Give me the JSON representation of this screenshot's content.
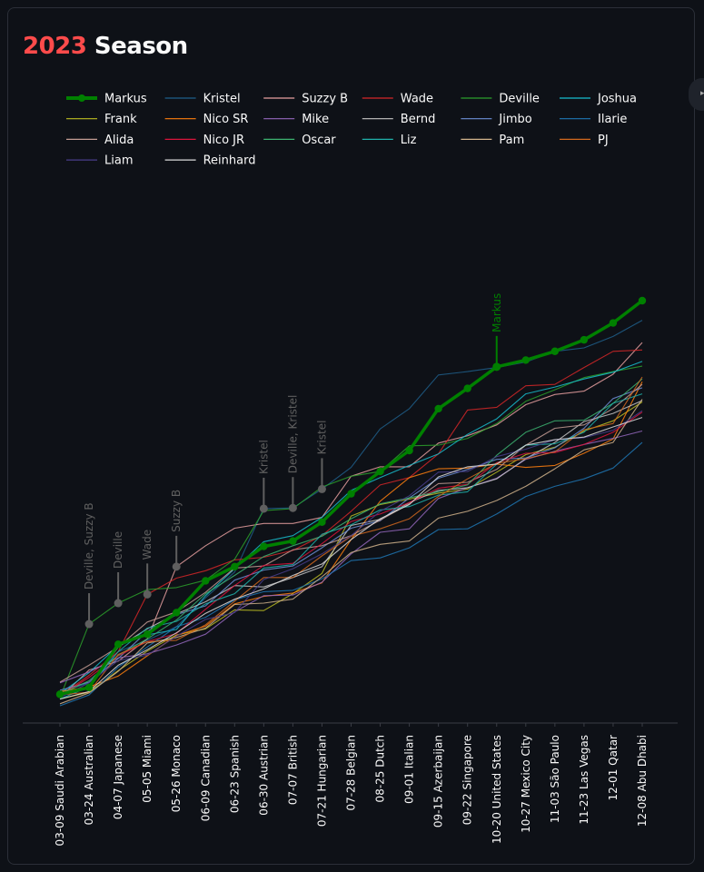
{
  "header": {
    "year": "2023",
    "title_rest": " Season"
  },
  "chart_data": {
    "type": "line",
    "title": "2023 Season",
    "legend_placement": "top",
    "x": [
      "03-09 Saudi Arabian",
      "03-24 Australian",
      "04-07 Japanese",
      "05-05 Miami",
      "05-26 Monaco",
      "06-09 Canadian",
      "06-23 Spanish",
      "06-30 Austrian",
      "07-07 British",
      "07-21 Hungarian",
      "07-28 Belgian",
      "08-25 Dutch",
      "09-01 Italian",
      "09-15 Azerbaijan",
      "09-22 Singapore",
      "10-20 United States",
      "10-27 Mexico City",
      "11-03 São Paulo",
      "11-23 Las Vegas",
      "12-01 Qatar",
      "12-08 Abu Dhabi"
    ],
    "ylim": [
      0,
      600
    ],
    "highlight": "Markus",
    "series": [
      {
        "name": "Markus",
        "color": "#008000",
        "values": [
          17,
          27,
          91,
          106,
          138,
          185,
          206,
          236,
          244,
          272,
          314,
          347,
          378,
          440,
          470,
          502,
          512,
          525,
          542,
          567,
          600
        ]
      },
      {
        "name": "Kristel",
        "color": "#1f5f8b",
        "values": [
          20,
          34,
          80,
          97,
          117,
          160,
          198,
          292,
          293,
          321,
          353,
          410,
          440,
          490,
          495,
          501,
          509,
          525,
          530,
          547,
          571
        ]
      },
      {
        "name": "Suzzy B",
        "color": "#e8a0a0",
        "values": [
          12,
          53,
          66,
          99,
          206,
          237,
          263,
          270,
          270,
          279,
          340,
          354,
          354,
          389,
          400,
          416,
          446,
          461,
          466,
          491,
          538
        ]
      },
      {
        "name": "Wade",
        "color": "#d62728",
        "values": [
          14,
          45,
          80,
          165,
          189,
          200,
          216,
          220,
          230,
          252,
          288,
          327,
          338,
          373,
          438,
          442,
          474,
          476,
          501,
          525,
          527
        ]
      },
      {
        "name": "Deville",
        "color": "#2ca02c",
        "values": [
          12,
          121,
          152,
          172,
          175,
          186,
          217,
          289,
          292,
          324,
          340,
          347,
          385,
          386,
          396,
          418,
          451,
          468,
          486,
          495,
          503
        ]
      },
      {
        "name": "Joshua",
        "color": "#17becf",
        "values": [
          18,
          49,
          89,
          105,
          113,
          163,
          203,
          243,
          252,
          279,
          319,
          338,
          356,
          373,
          402,
          425,
          462,
          472,
          484,
          494,
          510
        ]
      },
      {
        "name": "Frank",
        "color": "#bcbd22",
        "values": [
          10,
          20,
          52,
          81,
          105,
          114,
          142,
          141,
          166,
          196,
          281,
          298,
          306,
          315,
          321,
          346,
          372,
          383,
          407,
          422,
          450
        ]
      },
      {
        "name": "Nico SR",
        "color": "#ff7f0e",
        "values": [
          21,
          28,
          44,
          74,
          104,
          118,
          151,
          162,
          167,
          182,
          246,
          303,
          338,
          351,
          352,
          358,
          353,
          356,
          374,
          395,
          480
        ]
      },
      {
        "name": "Mike",
        "color": "#9467bd",
        "values": [
          34,
          50,
          71,
          77,
          90,
          106,
          139,
          163,
          164,
          183,
          225,
          257,
          262,
          307,
          323,
          337,
          365,
          377,
          387,
          396,
          407
        ]
      },
      {
        "name": "Bernd",
        "color": "#c7c7c7",
        "values": [
          16,
          27,
          87,
          114,
          136,
          154,
          178,
          176,
          190,
          206,
          267,
          276,
          301,
          319,
          323,
          336,
          366,
          390,
          421,
          433,
          452
        ]
      },
      {
        "name": "Jimbo",
        "color": "#6d8fd6",
        "values": [
          23,
          35,
          70,
          110,
          135,
          148,
          186,
          201,
          207,
          234,
          263,
          274,
          308,
          337,
          350,
          365,
          367,
          382,
          411,
          455,
          471
        ]
      },
      {
        "name": "Ilarie",
        "color": "#1f77b4",
        "values": [
          0,
          16,
          57,
          87,
          117,
          131,
          157,
          169,
          171,
          188,
          215,
          219,
          234,
          261,
          262,
          284,
          310,
          325,
          336,
          352,
          390
        ]
      },
      {
        "name": "Alida",
        "color": "#c49c94",
        "values": [
          35,
          60,
          87,
          124,
          139,
          168,
          204,
          207,
          231,
          237,
          252,
          275,
          299,
          329,
          331,
          350,
          386,
          411,
          416,
          440,
          476
        ]
      },
      {
        "name": "Nico JR",
        "color": "#dc143c",
        "values": [
          14,
          42,
          74,
          95,
          107,
          143,
          178,
          208,
          211,
          240,
          273,
          284,
          301,
          322,
          328,
          360,
          374,
          375,
          387,
          405,
          435
        ]
      },
      {
        "name": "Oscar",
        "color": "#3cb371",
        "values": [
          17,
          37,
          75,
          99,
          127,
          166,
          193,
          221,
          237,
          251,
          277,
          299,
          308,
          317,
          327,
          371,
          405,
          422,
          423,
          448,
          484
        ]
      },
      {
        "name": "Liz",
        "color": "#20b2aa",
        "values": [
          10,
          28,
          80,
          115,
          125,
          151,
          166,
          204,
          209,
          254,
          268,
          290,
          295,
          312,
          317,
          358,
          386,
          388,
          405,
          448,
          462
        ]
      },
      {
        "name": "Pam",
        "color": "#d2b48c",
        "values": [
          3,
          19,
          51,
          93,
          101,
          115,
          150,
          152,
          158,
          191,
          227,
          239,
          244,
          278,
          288,
          304,
          325,
          351,
          379,
          390,
          454
        ]
      },
      {
        "name": "PJ",
        "color": "#d2691e",
        "values": [
          16,
          20,
          76,
          95,
          97,
          120,
          155,
          190,
          190,
          222,
          251,
          262,
          277,
          310,
          336,
          359,
          366,
          376,
          409,
          418,
          487
        ]
      },
      {
        "name": "Liam",
        "color": "#483d8b",
        "values": [
          12,
          34,
          67,
          75,
          103,
          128,
          138,
          187,
          203,
          225,
          252,
          288,
          311,
          346,
          347,
          369,
          380,
          394,
          397,
          408,
          437
        ]
      },
      {
        "name": "Reinhard",
        "color": "#dcdcdc",
        "values": [
          10,
          21,
          60,
          83,
          108,
          137,
          158,
          173,
          193,
          210,
          246,
          277,
          298,
          339,
          354,
          358,
          386,
          394,
          398,
          413,
          427
        ]
      }
    ],
    "annotations": [
      {
        "x": "03-24 Australian",
        "y": 121,
        "text": "Deville, Suzzy B",
        "color": "#5f5f5f"
      },
      {
        "x": "04-07 Japanese",
        "y": 152,
        "text": "Deville",
        "color": "#5f5f5f"
      },
      {
        "x": "05-05 Miami",
        "y": 165,
        "text": "Wade",
        "color": "#5f5f5f"
      },
      {
        "x": "05-26 Monaco",
        "y": 206,
        "text": "Suzzy B",
        "color": "#5f5f5f"
      },
      {
        "x": "06-30 Austrian",
        "y": 292,
        "text": "Kristel",
        "color": "#5f5f5f"
      },
      {
        "x": "07-07 British",
        "y": 293,
        "text": "Deville, Kristel",
        "color": "#5f5f5f"
      },
      {
        "x": "07-21 Hungarian",
        "y": 321,
        "text": "Kristel",
        "color": "#5f5f5f"
      },
      {
        "x": "10-20 United States",
        "y": 502,
        "text": "Markus",
        "color": "#008000"
      }
    ]
  }
}
